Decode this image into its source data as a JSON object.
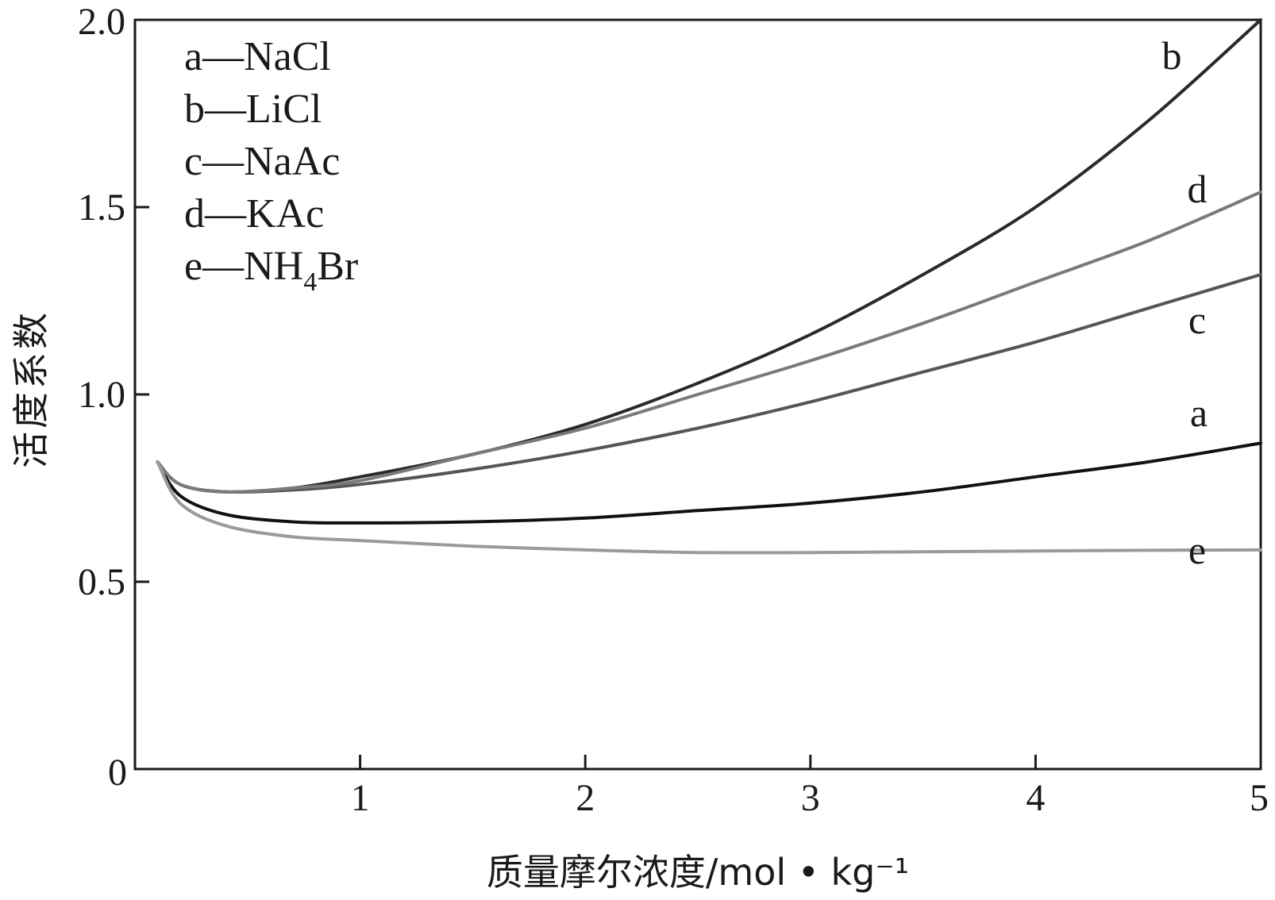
{
  "chart_data": {
    "type": "line",
    "title": "",
    "xlabel": "质量摩尔浓度/mol • kg⁻¹",
    "ylabel": "活度系数",
    "xlim": [
      0,
      5
    ],
    "ylim": [
      0,
      2.0
    ],
    "x_ticks": [
      0,
      1,
      2,
      3,
      4,
      5
    ],
    "y_ticks": [
      0.5,
      1.0,
      1.5,
      2.0
    ],
    "y_tick_labels": [
      "0.5",
      "1.0",
      "1.5",
      "2.0"
    ],
    "grid": false,
    "legend_position": "top-left",
    "legend": [
      {
        "key": "a",
        "dash": "—",
        "text": "NaCl"
      },
      {
        "key": "b",
        "dash": "—",
        "text": "LiCl"
      },
      {
        "key": "c",
        "dash": "—",
        "text": "NaAc"
      },
      {
        "key": "d",
        "dash": "—",
        "text": "KAc"
      },
      {
        "key": "e",
        "dash": "—",
        "text": "NH",
        "sub": "4",
        "text_after": "Br"
      }
    ],
    "series": [
      {
        "label": "a",
        "color": "#111111",
        "x": [
          0.1,
          0.2,
          0.4,
          0.7,
          1.0,
          1.5,
          2.0,
          2.5,
          3.0,
          3.5,
          4.0,
          4.5,
          5.0
        ],
        "y": [
          0.82,
          0.73,
          0.68,
          0.66,
          0.657,
          0.66,
          0.67,
          0.69,
          0.71,
          0.74,
          0.78,
          0.82,
          0.87
        ]
      },
      {
        "label": "b",
        "color": "#2a2a2a",
        "x": [
          0.1,
          0.2,
          0.4,
          0.7,
          1.0,
          1.5,
          2.0,
          2.5,
          3.0,
          3.5,
          4.0,
          4.5,
          5.0
        ],
        "y": [
          0.82,
          0.76,
          0.74,
          0.75,
          0.78,
          0.84,
          0.92,
          1.03,
          1.16,
          1.32,
          1.5,
          1.73,
          2.0
        ]
      },
      {
        "label": "c",
        "color": "#555555",
        "x": [
          0.1,
          0.2,
          0.4,
          0.7,
          1.0,
          1.5,
          2.0,
          2.5,
          3.0,
          3.5,
          4.0,
          4.5,
          5.0
        ],
        "y": [
          0.82,
          0.76,
          0.74,
          0.745,
          0.76,
          0.8,
          0.85,
          0.91,
          0.98,
          1.06,
          1.14,
          1.23,
          1.32
        ]
      },
      {
        "label": "d",
        "color": "#7a7a7a",
        "x": [
          0.1,
          0.2,
          0.4,
          0.7,
          1.0,
          1.5,
          2.0,
          2.5,
          3.0,
          3.5,
          4.0,
          4.5,
          5.0
        ],
        "y": [
          0.82,
          0.76,
          0.74,
          0.75,
          0.77,
          0.84,
          0.91,
          1.0,
          1.09,
          1.19,
          1.3,
          1.41,
          1.54
        ]
      },
      {
        "label": "e",
        "color": "#9a9a9a",
        "x": [
          0.1,
          0.2,
          0.4,
          0.7,
          1.0,
          1.5,
          2.0,
          2.5,
          3.0,
          3.5,
          4.0,
          4.5,
          5.0
        ],
        "y": [
          0.82,
          0.71,
          0.65,
          0.62,
          0.61,
          0.595,
          0.585,
          0.578,
          0.578,
          0.58,
          0.582,
          0.584,
          0.585
        ]
      }
    ]
  }
}
